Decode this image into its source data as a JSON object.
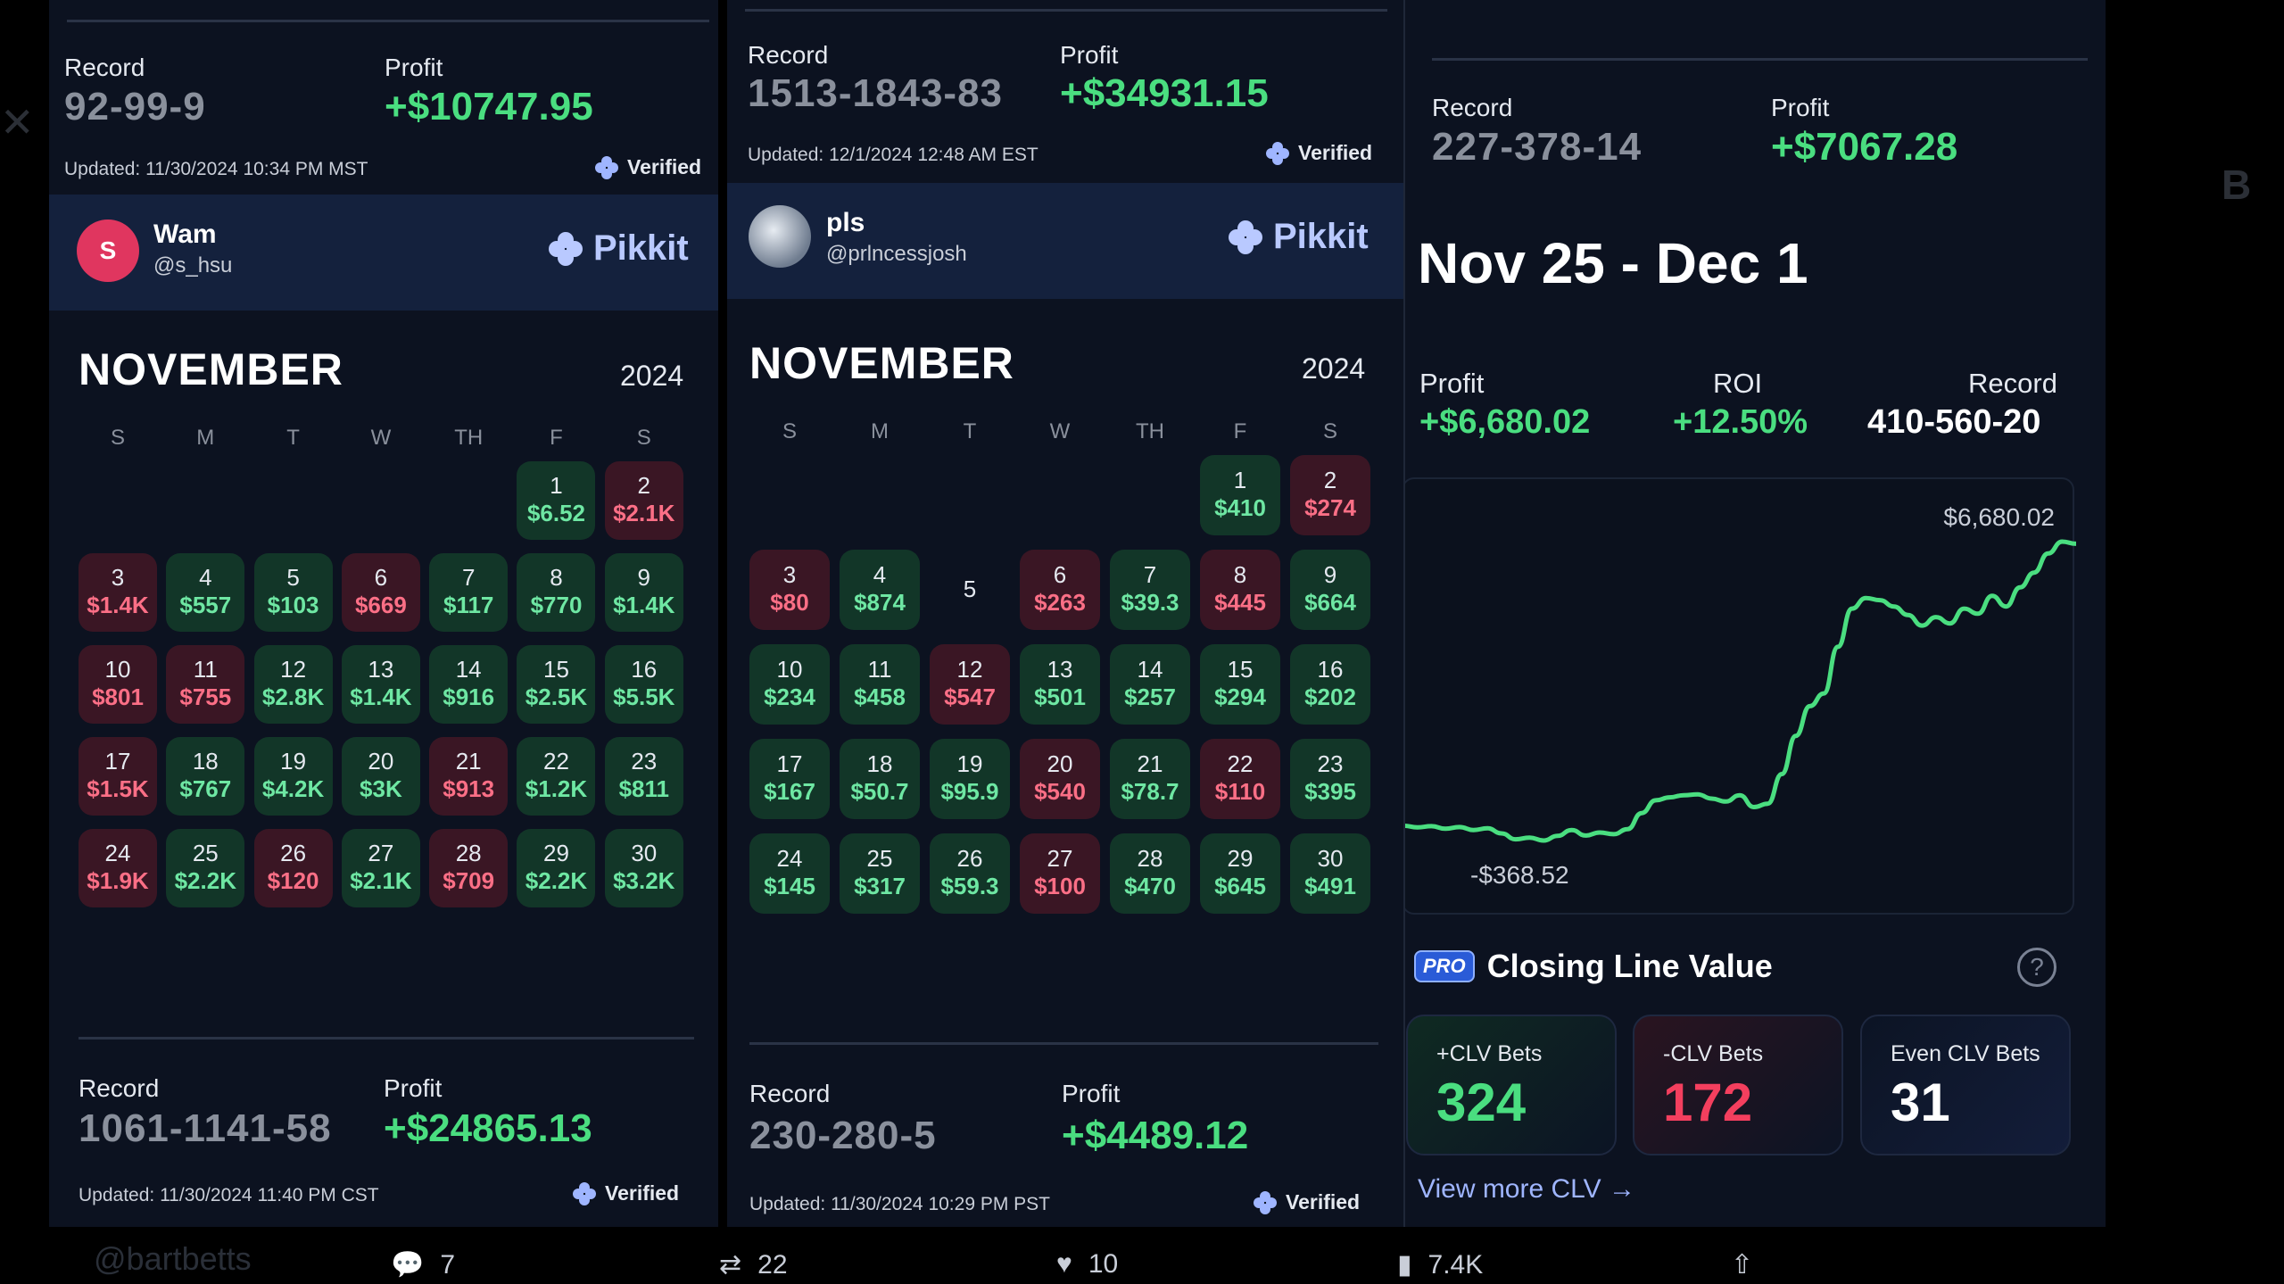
{
  "panel1": {
    "top": {
      "record_label": "Record",
      "record": "92-99-9",
      "profit_label": "Profit",
      "profit": "+$10747.95",
      "updated": "Updated: 11/30/2024 10:34 PM MST",
      "verified": "Verified"
    },
    "profile": {
      "avatar_letter": "S",
      "name": "Wam",
      "handle": "@s_hsu",
      "brand": "Pikkit"
    },
    "calendar": {
      "month": "NOVEMBER",
      "year": "2024",
      "dow": [
        "S",
        "M",
        "T",
        "W",
        "TH",
        "F",
        "S"
      ],
      "leading_blanks": 5,
      "days": [
        {
          "d": "1",
          "v": "$6.52",
          "s": "win"
        },
        {
          "d": "2",
          "v": "$2.1K",
          "s": "loss"
        },
        {
          "d": "3",
          "v": "$1.4K",
          "s": "loss"
        },
        {
          "d": "4",
          "v": "$557",
          "s": "win"
        },
        {
          "d": "5",
          "v": "$103",
          "s": "win"
        },
        {
          "d": "6",
          "v": "$669",
          "s": "loss"
        },
        {
          "d": "7",
          "v": "$117",
          "s": "win"
        },
        {
          "d": "8",
          "v": "$770",
          "s": "win"
        },
        {
          "d": "9",
          "v": "$1.4K",
          "s": "win"
        },
        {
          "d": "10",
          "v": "$801",
          "s": "loss"
        },
        {
          "d": "11",
          "v": "$755",
          "s": "loss"
        },
        {
          "d": "12",
          "v": "$2.8K",
          "s": "win"
        },
        {
          "d": "13",
          "v": "$1.4K",
          "s": "win"
        },
        {
          "d": "14",
          "v": "$916",
          "s": "win"
        },
        {
          "d": "15",
          "v": "$2.5K",
          "s": "win"
        },
        {
          "d": "16",
          "v": "$5.5K",
          "s": "win"
        },
        {
          "d": "17",
          "v": "$1.5K",
          "s": "loss"
        },
        {
          "d": "18",
          "v": "$767",
          "s": "win"
        },
        {
          "d": "19",
          "v": "$4.2K",
          "s": "win"
        },
        {
          "d": "20",
          "v": "$3K",
          "s": "win"
        },
        {
          "d": "21",
          "v": "$913",
          "s": "loss"
        },
        {
          "d": "22",
          "v": "$1.2K",
          "s": "win"
        },
        {
          "d": "23",
          "v": "$811",
          "s": "win"
        },
        {
          "d": "24",
          "v": "$1.9K",
          "s": "loss"
        },
        {
          "d": "25",
          "v": "$2.2K",
          "s": "win"
        },
        {
          "d": "26",
          "v": "$120",
          "s": "loss"
        },
        {
          "d": "27",
          "v": "$2.1K",
          "s": "win"
        },
        {
          "d": "28",
          "v": "$709",
          "s": "loss"
        },
        {
          "d": "29",
          "v": "$2.2K",
          "s": "win"
        },
        {
          "d": "30",
          "v": "$3.2K",
          "s": "win"
        }
      ]
    },
    "bottom": {
      "record_label": "Record",
      "record": "1061-1141-58",
      "profit_label": "Profit",
      "profit": "+$24865.13",
      "updated": "Updated: 11/30/2024 11:40 PM CST",
      "verified": "Verified"
    }
  },
  "panel2": {
    "top": {
      "record_label": "Record",
      "record": "1513-1843-83",
      "profit_label": "Profit",
      "profit": "+$34931.15",
      "updated": "Updated: 12/1/2024 12:48 AM EST",
      "verified": "Verified"
    },
    "profile": {
      "name": "pls",
      "handle": "@prlncessjosh",
      "brand": "Pikkit"
    },
    "calendar": {
      "month": "NOVEMBER",
      "year": "2024",
      "dow": [
        "S",
        "M",
        "T",
        "W",
        "TH",
        "F",
        "S"
      ],
      "leading_blanks": 5,
      "days": [
        {
          "d": "1",
          "v": "$410",
          "s": "win"
        },
        {
          "d": "2",
          "v": "$274",
          "s": "loss"
        },
        {
          "d": "3",
          "v": "$80",
          "s": "loss"
        },
        {
          "d": "4",
          "v": "$874",
          "s": "win"
        },
        {
          "d": "5",
          "v": "",
          "s": "none"
        },
        {
          "d": "6",
          "v": "$263",
          "s": "loss"
        },
        {
          "d": "7",
          "v": "$39.3",
          "s": "win"
        },
        {
          "d": "8",
          "v": "$445",
          "s": "loss"
        },
        {
          "d": "9",
          "v": "$664",
          "s": "win"
        },
        {
          "d": "10",
          "v": "$234",
          "s": "win"
        },
        {
          "d": "11",
          "v": "$458",
          "s": "win"
        },
        {
          "d": "12",
          "v": "$547",
          "s": "loss"
        },
        {
          "d": "13",
          "v": "$501",
          "s": "win"
        },
        {
          "d": "14",
          "v": "$257",
          "s": "win"
        },
        {
          "d": "15",
          "v": "$294",
          "s": "win"
        },
        {
          "d": "16",
          "v": "$202",
          "s": "win"
        },
        {
          "d": "17",
          "v": "$167",
          "s": "win"
        },
        {
          "d": "18",
          "v": "$50.7",
          "s": "win"
        },
        {
          "d": "19",
          "v": "$95.9",
          "s": "win"
        },
        {
          "d": "20",
          "v": "$540",
          "s": "loss"
        },
        {
          "d": "21",
          "v": "$78.7",
          "s": "win"
        },
        {
          "d": "22",
          "v": "$110",
          "s": "loss"
        },
        {
          "d": "23",
          "v": "$395",
          "s": "win"
        },
        {
          "d": "24",
          "v": "$145",
          "s": "win"
        },
        {
          "d": "25",
          "v": "$317",
          "s": "win"
        },
        {
          "d": "26",
          "v": "$59.3",
          "s": "win"
        },
        {
          "d": "27",
          "v": "$100",
          "s": "loss"
        },
        {
          "d": "28",
          "v": "$470",
          "s": "win"
        },
        {
          "d": "29",
          "v": "$645",
          "s": "win"
        },
        {
          "d": "30",
          "v": "$491",
          "s": "win"
        }
      ]
    },
    "bottom": {
      "record_label": "Record",
      "record": "230-280-5",
      "profit_label": "Profit",
      "profit": "+$4489.12",
      "updated": "Updated: 11/30/2024 10:29 PM PST",
      "verified": "Verified"
    }
  },
  "panel3": {
    "top": {
      "record_label": "Record",
      "record": "227-378-14",
      "profit_label": "Profit",
      "profit": "+$7067.28"
    },
    "week_title": "Nov 25 - Dec 1",
    "summary": {
      "profit_label": "Profit",
      "profit": "+$6,680.02",
      "roi_label": "ROI",
      "roi": "+12.50%",
      "record_label": "Record",
      "record": "410-560-20"
    },
    "chart_data": {
      "type": "line",
      "title": "",
      "max_label": "$6,680.02",
      "min_label": "-$368.52",
      "ylim": [
        -368.52,
        6680.02
      ],
      "series": [
        {
          "values": [
            -20,
            -60,
            -30,
            -90,
            -50,
            -120,
            -80,
            -200,
            -340,
            -300,
            -368.52,
            -260,
            -120,
            -250,
            -180,
            -220,
            -100,
            280,
            580,
            650,
            700,
            720,
            620,
            550,
            700,
            420,
            500,
            1200,
            2100,
            2800,
            3100,
            4200,
            5100,
            5350,
            5300,
            5150,
            4950,
            4700,
            4900,
            4750,
            5100,
            4980,
            5400,
            5150,
            5600,
            5950,
            6400,
            6680.02,
            6630
          ]
        }
      ],
      "color": "#4ade80"
    },
    "clv": {
      "badge": "PRO",
      "title": "Closing Line Value",
      "help": "?",
      "cards": [
        {
          "label": "+CLV Bets",
          "value": "324",
          "color": "#4ade80"
        },
        {
          "label": "-CLV Bets",
          "value": "172",
          "color": "#f43f5e"
        },
        {
          "label": "Even CLV Bets",
          "value": "31",
          "color": "#ffffff"
        }
      ],
      "view_more": "View more CLV →"
    }
  },
  "footer": {
    "handle": "@bartbetts",
    "reply_count": "7",
    "repost_count": "22",
    "like_count": "10",
    "views_count": "7.4K"
  }
}
